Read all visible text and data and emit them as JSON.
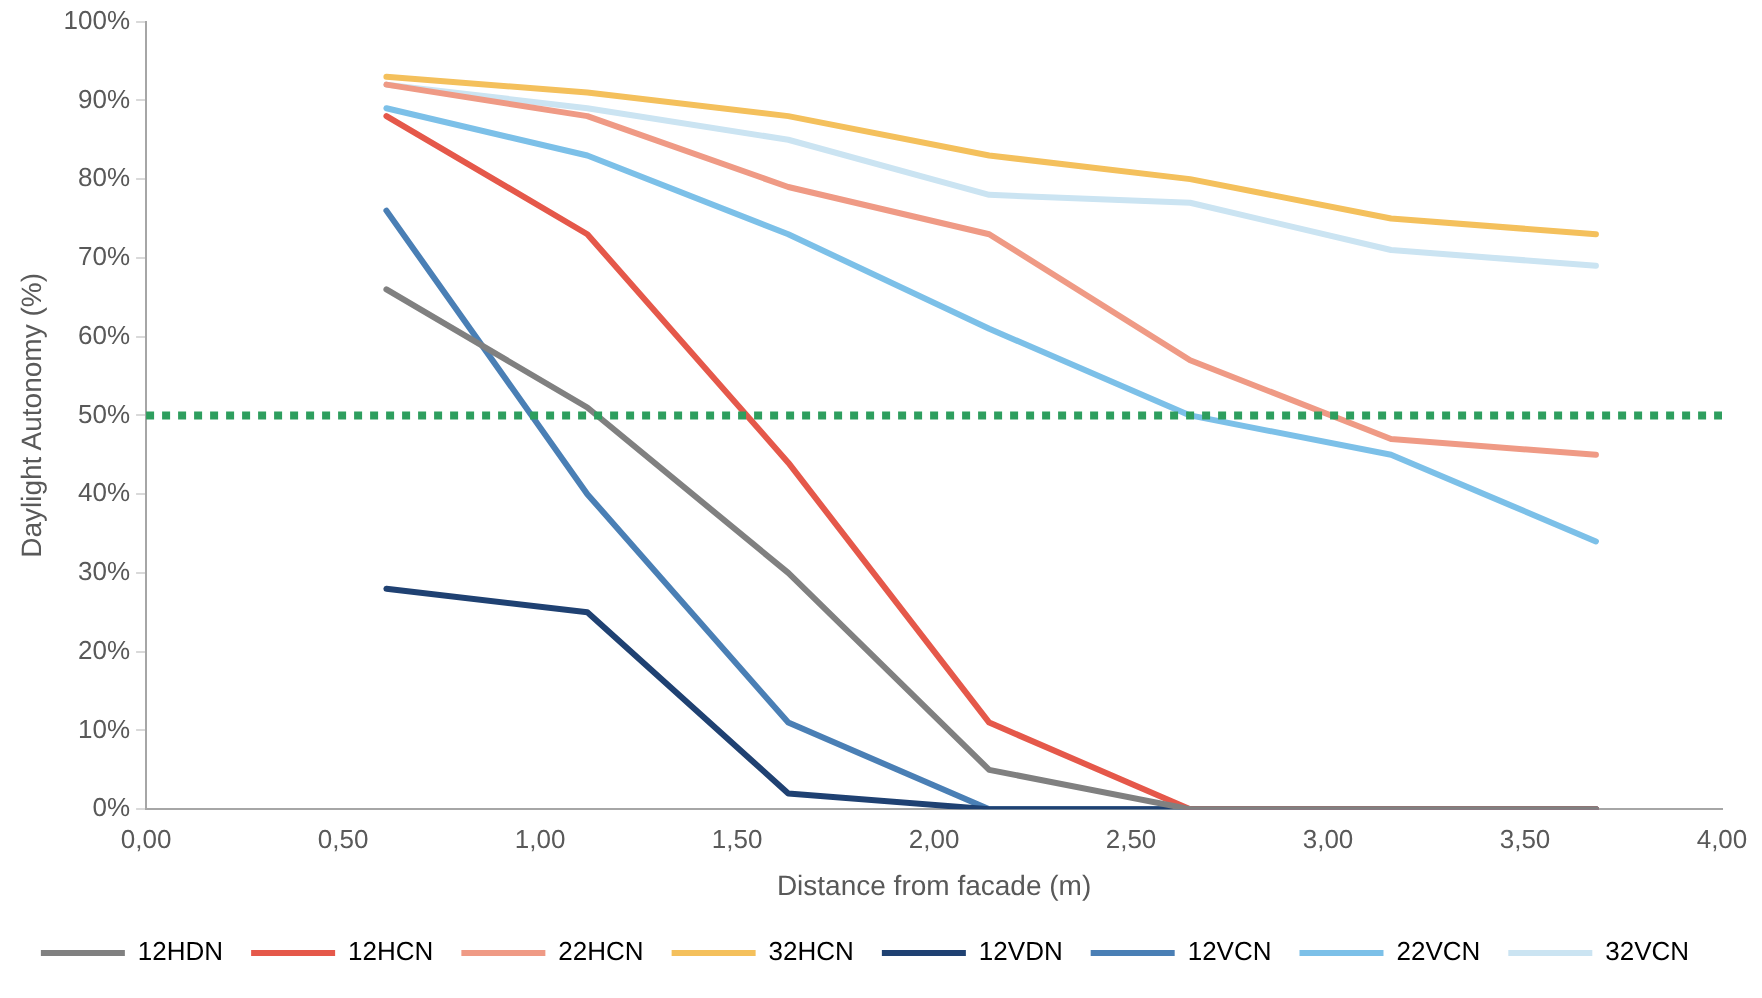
{
  "chart_data": {
    "type": "line",
    "xlabel": "Distance from facade (m)",
    "ylabel": "Daylight Autonomy (%)",
    "x": [
      0.61,
      1.12,
      1.63,
      2.14,
      2.65,
      3.16,
      3.68
    ],
    "xlim": [
      0,
      4
    ],
    "xticks": [
      {
        "value": 0,
        "label": "0,00"
      },
      {
        "value": 0.5,
        "label": "0,50"
      },
      {
        "value": 1,
        "label": "1,00"
      },
      {
        "value": 1.5,
        "label": "1,50"
      },
      {
        "value": 2,
        "label": "2,00"
      },
      {
        "value": 2.5,
        "label": "2,50"
      },
      {
        "value": 3,
        "label": "3,00"
      },
      {
        "value": 3.5,
        "label": "3,50"
      },
      {
        "value": 4,
        "label": "4,00"
      }
    ],
    "ylim": [
      0,
      100
    ],
    "yticks": [
      {
        "value": 0,
        "label": "0%"
      },
      {
        "value": 10,
        "label": "10%"
      },
      {
        "value": 20,
        "label": "20%"
      },
      {
        "value": 30,
        "label": "30%"
      },
      {
        "value": 40,
        "label": "40%"
      },
      {
        "value": 50,
        "label": "50%"
      },
      {
        "value": 60,
        "label": "60%"
      },
      {
        "value": 70,
        "label": "70%"
      },
      {
        "value": 80,
        "label": "80%"
      },
      {
        "value": 90,
        "label": "90%"
      },
      {
        "value": 100,
        "label": "100%"
      }
    ],
    "grid": false,
    "legend": "bottom",
    "marker": "none",
    "line_style": "solid",
    "series": [
      {
        "name": "12HDN",
        "color": "#808080",
        "values": [
          66,
          51,
          30,
          5,
          0,
          0,
          0
        ]
      },
      {
        "name": "12HCN",
        "color": "#e5584a",
        "values": [
          88,
          73,
          44,
          11,
          0,
          0,
          0
        ]
      },
      {
        "name": "22HCN",
        "color": "#ef9a85",
        "values": [
          92,
          88,
          79,
          73,
          57,
          47,
          45
        ]
      },
      {
        "name": "32HCN",
        "color": "#f4c05c",
        "values": [
          93,
          91,
          88,
          83,
          80,
          75,
          73
        ]
      },
      {
        "name": "12VDN",
        "color": "#1f4172",
        "values": [
          28,
          25,
          2,
          0,
          0,
          0,
          0
        ]
      },
      {
        "name": "12VCN",
        "color": "#4a7fb5",
        "values": [
          76,
          40,
          11,
          0,
          0,
          0,
          0
        ]
      },
      {
        "name": "22VCN",
        "color": "#7cc0e8",
        "values": [
          89,
          83,
          73,
          61,
          50,
          45,
          34
        ]
      },
      {
        "name": "32VCN",
        "color": "#cbe4f2",
        "values": [
          92,
          89,
          85,
          78,
          77,
          71,
          69
        ]
      }
    ],
    "ref_lines": [
      {
        "axis": "y",
        "value": 50,
        "color": "#2e9e5e",
        "line_style": "dotted"
      }
    ]
  }
}
